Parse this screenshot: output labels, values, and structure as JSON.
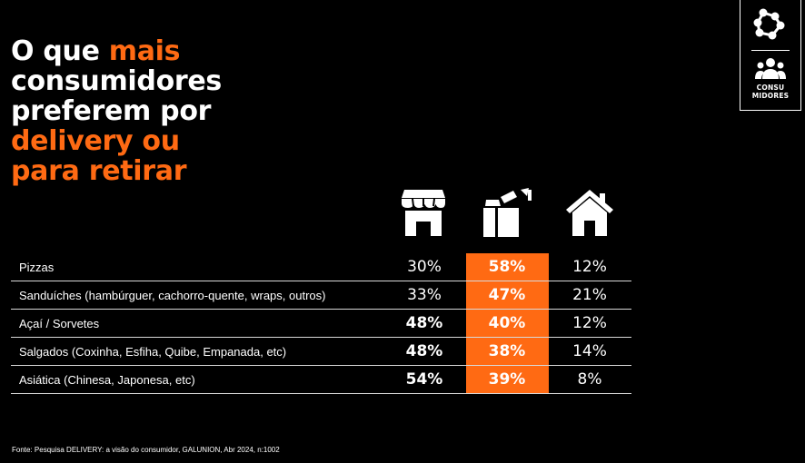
{
  "title": {
    "line1_plain": "O que ",
    "line1_accent": "mais",
    "line2": "consumidores",
    "line3": "preferem por",
    "line4_accent": "delivery ou",
    "line5_accent": "para retirar"
  },
  "badge": {
    "line1": "CONSU",
    "line2": "MIDORES"
  },
  "colors": {
    "accent": "#ff6a13",
    "background": "#000000",
    "text": "#ffffff"
  },
  "columns": [
    {
      "icon": "store-icon"
    },
    {
      "icon": "delivery-bag-icon"
    },
    {
      "icon": "house-icon"
    }
  ],
  "chart_data": {
    "type": "table",
    "categories": [
      "Pizzas",
      "Sanduíches (hambúrguer, cachorro-quente, wraps, outros)",
      "Açaí / Sorvetes",
      "Salgados (Coxinha, Esfiha, Quibe, Empanada, etc)",
      "Asiática (Chinesa, Japonesa, etc)"
    ],
    "series": [
      {
        "values": [
          30,
          33,
          48,
          48,
          54
        ],
        "labels": [
          "30%",
          "33%",
          "48%",
          "48%",
          "54%"
        ],
        "bold": [
          false,
          false,
          true,
          true,
          true
        ]
      },
      {
        "values": [
          58,
          47,
          40,
          38,
          39
        ],
        "labels": [
          "58%",
          "47%",
          "40%",
          "38%",
          "39%"
        ],
        "bold": [
          true,
          true,
          true,
          true,
          true
        ]
      },
      {
        "values": [
          12,
          21,
          12,
          14,
          8
        ],
        "labels": [
          "12%",
          "21%",
          "12%",
          "14%",
          "8%"
        ],
        "bold": [
          false,
          false,
          false,
          false,
          false
        ]
      }
    ],
    "highlight_series": 1
  },
  "source": "Fonte: Pesquisa DELIVERY: a visão do consumidor, GALUNION, Abr 2024, n:1002"
}
